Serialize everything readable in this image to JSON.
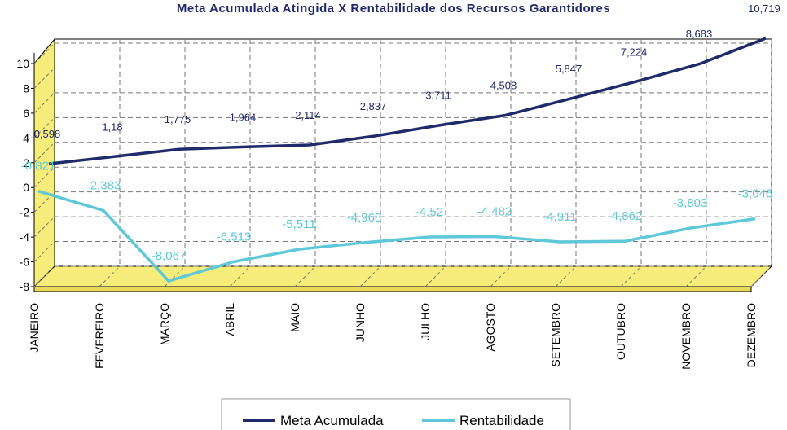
{
  "chart_data": {
    "type": "line",
    "title": "Meta Acumulada Atingida X Rentabilidade dos Recursos Garantidores",
    "categories": [
      "JANEIRO",
      "FEVEREIRO",
      "MARÇO",
      "ABRIL",
      "MAIO",
      "JUNHO",
      "JULHO",
      "AGOSTO",
      "SETEMBRO",
      "OUTUBRO",
      "NOVEMBRO",
      "DEZEMBRO"
    ],
    "series": [
      {
        "name": "Meta Acumulada",
        "color": "#1f2a6b",
        "values": [
          0.598,
          1.18,
          1.775,
          1.964,
          2.114,
          2.837,
          3.711,
          4.508,
          5.847,
          7.224,
          8.683,
          10.719
        ],
        "value_labels": [
          "0,598",
          "1,18",
          "1,775",
          "1,964",
          "2,114",
          "2,837",
          "3,711",
          "4,508",
          "5,847",
          "7,224",
          "8,683",
          "10,719"
        ]
      },
      {
        "name": "Rentabilidade",
        "color": "#5ec8d8",
        "values": [
          -0.821,
          -2.383,
          -8.067,
          -6.513,
          -5.511,
          -4.968,
          -4.52,
          -4.482,
          -4.911,
          -4.862,
          -3.803,
          -3.046
        ],
        "value_labels": [
          "-0,821",
          "-2,383",
          "-8,067",
          "-6,513",
          "-5,511",
          "-4,968",
          "-4,52",
          "-4,482",
          "-4,911",
          "-4,862",
          "-3,803",
          "-3,046"
        ]
      }
    ],
    "ylim": [
      -8,
      10
    ],
    "yticks": [
      -8,
      -6,
      -4,
      -2,
      0,
      2,
      4,
      6,
      8,
      10
    ],
    "grid": true,
    "legend": "bottom"
  }
}
